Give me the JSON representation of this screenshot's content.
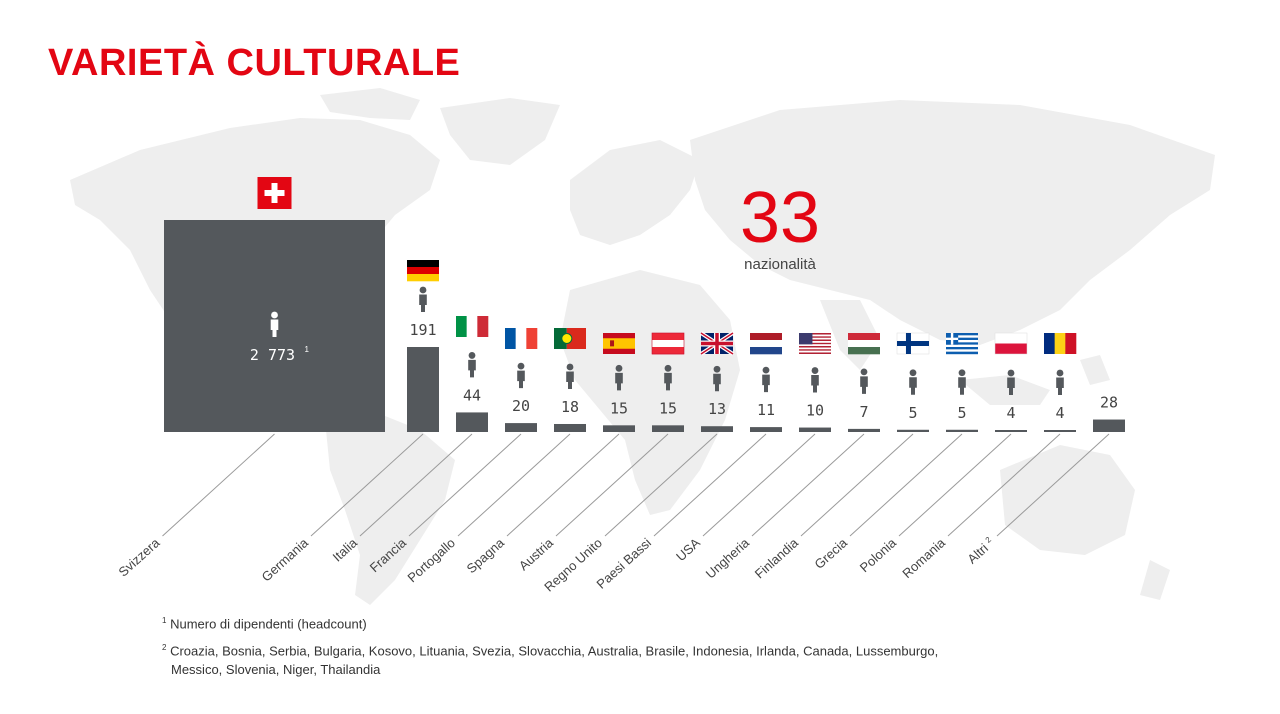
{
  "title": "VARIETÀ CULTURALE",
  "headline": {
    "value": "33",
    "label": "nazionalità"
  },
  "footnotes": {
    "note1": {
      "marker": "1",
      "text": "Numero di dipendenti (headcount)"
    },
    "note2": {
      "marker": "2",
      "line1": "Croazia, Bosnia, Serbia, Bulgaria, Kosovo, Lituania, Svezia, Slovacchia, Australia, Brasile, Indonesia, Irlanda, Canada, Lussemburgo,",
      "line2": "Messico, Slovenia, Niger, Thailandia"
    }
  },
  "colors": {
    "accent": "#e30613",
    "bar": "#54585c",
    "map": "#eeeeee",
    "line": "#9a9a9a"
  },
  "chart_data": {
    "type": "bar",
    "title": "VARIETÀ CULTURALE",
    "subtitle": "33 nazionalità",
    "ylabel": "Numero di dipendenti (headcount)",
    "categories": [
      "Svizzera",
      "Germania",
      "Italia",
      "Francia",
      "Portogallo",
      "Spagna",
      "Austria",
      "Regno Unito",
      "Paesi Bassi",
      "USA",
      "Ungheria",
      "Finlandia",
      "Grecia",
      "Polonia",
      "Romania",
      "Altri"
    ],
    "values": [
      2773,
      191,
      44,
      20,
      18,
      15,
      15,
      13,
      11,
      10,
      7,
      5,
      5,
      4,
      4,
      28
    ],
    "value_labels": [
      "2 773",
      "191",
      "44",
      "20",
      "18",
      "15",
      "15",
      "13",
      "11",
      "10",
      "7",
      "5",
      "5",
      "4",
      "4",
      "28"
    ],
    "value_label_notes": [
      "1",
      "",
      "",
      "",
      "",
      "",
      "",
      "",
      "",
      "",
      "",
      "",
      "",
      "",
      "",
      ""
    ],
    "category_notes": [
      "",
      "",
      "",
      "",
      "",
      "",
      "",
      "",
      "",
      "",
      "",
      "",
      "",
      "",
      "",
      "2"
    ],
    "flags": [
      "switzerland-flag",
      "germany-flag",
      "italy-flag",
      "france-flag",
      "portugal-flag",
      "spain-flag",
      "austria-flag",
      "uk-flag",
      "netherlands-flag",
      "usa-flag",
      "hungary-flag",
      "finland-flag",
      "greece-flag",
      "poland-flag",
      "romania-flag",
      ""
    ],
    "note": "Svizzera drawn as square area; other bars heights proportional to headcount"
  }
}
